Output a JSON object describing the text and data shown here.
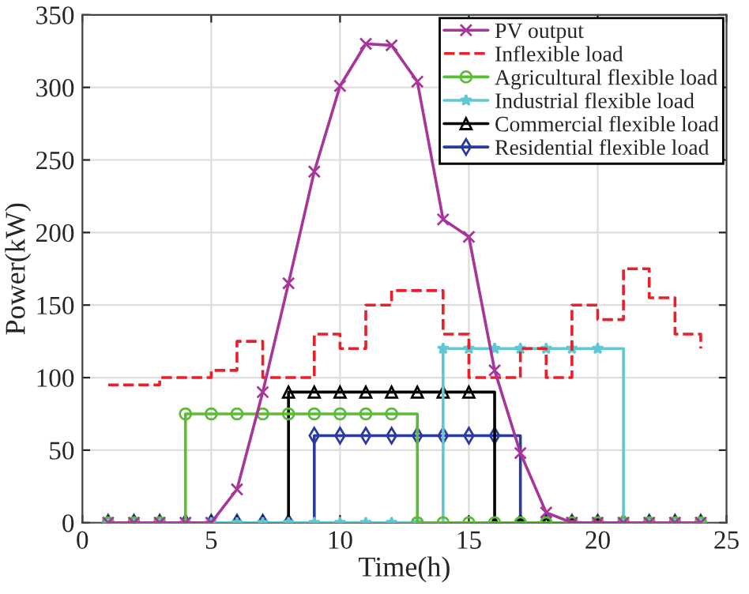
{
  "chart_data": {
    "type": "line",
    "xlabel": "Time(h)",
    "ylabel": "Power(kW)",
    "x": [
      1,
      2,
      3,
      4,
      5,
      6,
      7,
      8,
      9,
      10,
      11,
      12,
      13,
      14,
      15,
      16,
      17,
      18,
      19,
      20,
      21,
      22,
      23,
      24
    ],
    "xlim": [
      0,
      25
    ],
    "xticks": [
      0,
      5,
      10,
      15,
      20,
      25
    ],
    "ylim": [
      0,
      350
    ],
    "yticks": [
      0,
      50,
      100,
      150,
      200,
      250,
      300,
      350
    ],
    "grid": true,
    "legend": "top right",
    "series": [
      {
        "name": "PV output",
        "color": "#a8359a",
        "marker": "cross",
        "line_style": "solid",
        "values": [
          0,
          0,
          0,
          0,
          0,
          23,
          90,
          165,
          242,
          301,
          330,
          329,
          304,
          209,
          197,
          105,
          48,
          7,
          0,
          0,
          0,
          0,
          0,
          0
        ]
      },
      {
        "name": "Inflexible load",
        "type": "step",
        "color": "#e8202a",
        "marker": "none",
        "line_style": "dashed",
        "values": [
          95,
          95,
          100,
          100,
          105,
          125,
          100,
          100,
          130,
          120,
          150,
          160,
          160,
          130,
          100,
          100,
          120,
          100,
          150,
          140,
          175,
          155,
          130,
          120
        ]
      },
      {
        "name": "Agricultural flexible load",
        "type": "step",
        "color": "#5dbb3a",
        "marker": "circle",
        "line_style": "solid",
        "values": [
          0,
          0,
          0,
          75,
          75,
          75,
          75,
          75,
          75,
          75,
          75,
          75,
          0,
          0,
          0,
          0,
          0,
          0,
          0,
          0,
          0,
          0,
          0,
          0
        ]
      },
      {
        "name": "Industrial flexible load",
        "type": "step",
        "color": "#5fc8d0",
        "marker": "star",
        "line_style": "solid",
        "values": [
          0,
          0,
          0,
          0,
          0,
          0,
          0,
          0,
          0,
          0,
          0,
          0,
          0,
          120,
          120,
          120,
          120,
          120,
          120,
          120,
          0,
          0,
          0,
          0
        ]
      },
      {
        "name": "Commercial flexible load",
        "type": "step",
        "color": "#000000",
        "marker": "triangle",
        "line_style": "solid",
        "values": [
          0,
          0,
          0,
          0,
          0,
          0,
          0,
          90,
          90,
          90,
          90,
          90,
          90,
          90,
          90,
          0,
          0,
          0,
          0,
          0,
          0,
          0,
          0,
          0
        ]
      },
      {
        "name": "Residential flexible load",
        "type": "step",
        "color": "#2a3a9e",
        "marker": "diamond",
        "line_style": "solid",
        "values": [
          0,
          0,
          0,
          0,
          0,
          0,
          0,
          0,
          60,
          60,
          60,
          60,
          60,
          60,
          60,
          60,
          0,
          0,
          0,
          0,
          0,
          0,
          0,
          0
        ]
      }
    ]
  }
}
